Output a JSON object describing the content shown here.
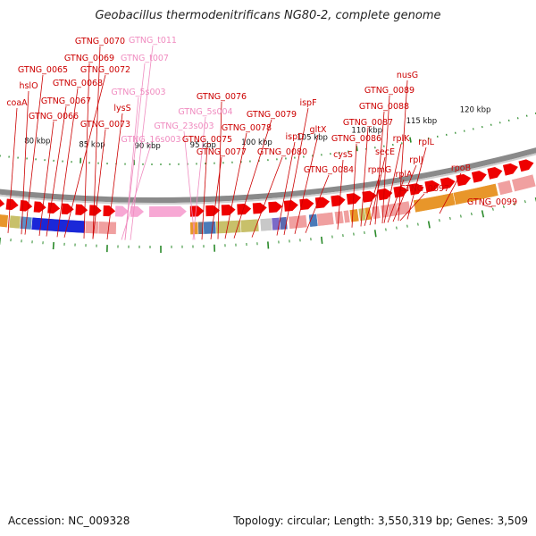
{
  "title": "Geobacillus thermodenitrificans NG80-2, complete genome",
  "footer": {
    "accession": "Accession: NC_009328",
    "stats": "Topology: circular; Length: 3,550,319 bp; Genes: 3,509"
  },
  "colors": {
    "protein_label": "#cc0000",
    "rna_label": "#f08cc0",
    "forward_arrow": "#ee0000",
    "rna_arrow": "#f7a8d4",
    "backbone": "#8a8a8a"
  },
  "gene_labels": [
    {
      "text": "GTNG_0070",
      "type": "protein"
    },
    {
      "text": "GTNG_t011",
      "type": "rna"
    },
    {
      "text": "GTNG_0069",
      "type": "protein"
    },
    {
      "text": "GTNG_t007",
      "type": "rna"
    },
    {
      "text": "GTNG_0065",
      "type": "protein"
    },
    {
      "text": "GTNG_0072",
      "type": "protein"
    },
    {
      "text": "hslO",
      "type": "protein"
    },
    {
      "text": "GTNG_0068",
      "type": "protein"
    },
    {
      "text": "GTNG_5s003",
      "type": "rna"
    },
    {
      "text": "coaA",
      "type": "protein"
    },
    {
      "text": "GTNG_0067",
      "type": "protein"
    },
    {
      "text": "lysS",
      "type": "protein"
    },
    {
      "text": "GTNG_0066",
      "type": "protein"
    },
    {
      "text": "GTNG_0073",
      "type": "protein"
    },
    {
      "text": "GTNG_16s003",
      "type": "rna"
    },
    {
      "text": "GTNG_0076",
      "type": "protein"
    },
    {
      "text": "GTNG_5s004",
      "type": "rna"
    },
    {
      "text": "GTNG_23s003",
      "type": "rna"
    },
    {
      "text": "GTNG_0075",
      "type": "protein"
    },
    {
      "text": "GTNG_0077",
      "type": "protein"
    },
    {
      "text": "GTNG_0079",
      "type": "protein"
    },
    {
      "text": "GTNG_0078",
      "type": "protein"
    },
    {
      "text": "GTNG_0080",
      "type": "protein"
    },
    {
      "text": "ispF",
      "type": "protein"
    },
    {
      "text": "ispD",
      "type": "protein"
    },
    {
      "text": "gltX",
      "type": "protein"
    },
    {
      "text": "GTNG_0084",
      "type": "protein"
    },
    {
      "text": "nusG",
      "type": "protein"
    },
    {
      "text": "GTNG_0089",
      "type": "protein"
    },
    {
      "text": "GTNG_0088",
      "type": "protein"
    },
    {
      "text": "GTNG_0087",
      "type": "protein"
    },
    {
      "text": "GTNG_0086",
      "type": "protein"
    },
    {
      "text": "cysS",
      "type": "protein"
    },
    {
      "text": "rplK",
      "type": "protein"
    },
    {
      "text": "secE",
      "type": "protein"
    },
    {
      "text": "rpmG",
      "type": "protein"
    },
    {
      "text": "rplA",
      "type": "protein"
    },
    {
      "text": "rplJ",
      "type": "protein"
    },
    {
      "text": "rplL",
      "type": "protein"
    },
    {
      "text": "GTNG_0097",
      "type": "protein"
    },
    {
      "text": "rpoB",
      "type": "protein"
    },
    {
      "text": "GTNG_0099",
      "type": "protein"
    }
  ],
  "ticks": [
    "80 kbp",
    "85 kbp",
    "90 kbp",
    "95 kbp",
    "100 kbp",
    "105 kbp",
    "110 kbp",
    "115 kbp",
    "120 kbp"
  ]
}
